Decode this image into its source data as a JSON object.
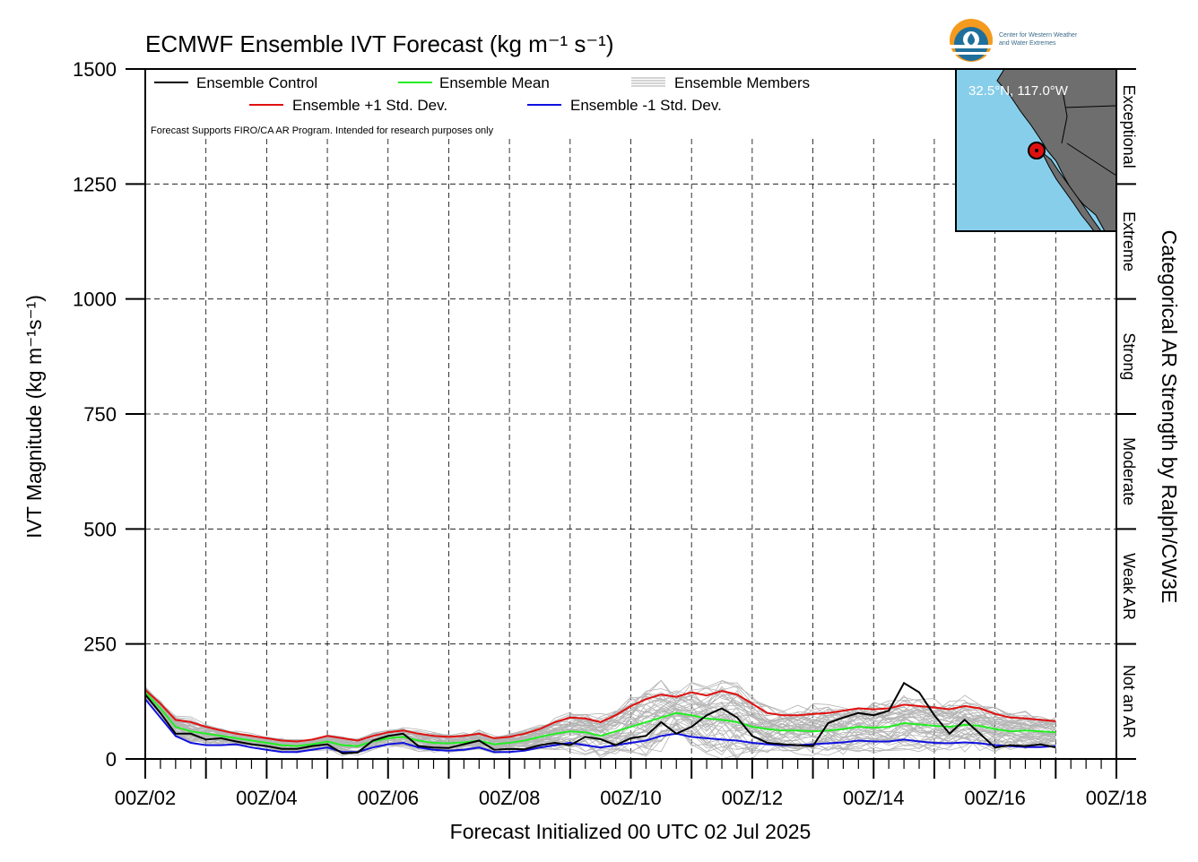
{
  "title": "ECMWF Ensemble IVT Forecast (kg m⁻¹ s⁻¹)",
  "ylabel": "IVT Magnitude (kg m⁻¹s⁻¹)",
  "xlabel": "Forecast Initialized 00 UTC 02 Jul 2025",
  "right_label": "Categorical AR Strength by Ralph/CW3E",
  "note": "Forecast Supports FIRO/CA AR Program. Intended for research purposes only",
  "logo": {
    "line1": "Center for Western Weather",
    "line2": "and Water Extremes"
  },
  "inset": {
    "location": "32.5°N, 117.0°W"
  },
  "legend": [
    {
      "label": "Ensemble Control",
      "color": "#000000"
    },
    {
      "label": "Ensemble Mean",
      "color": "#22ee22"
    },
    {
      "label": "Ensemble Members",
      "color": "#aaaaaa"
    },
    {
      "label": "Ensemble +1 Std. Dev.",
      "color": "#e01010"
    },
    {
      "label": "Ensemble -1 Std. Dev.",
      "color": "#1010e0"
    }
  ],
  "categories": [
    {
      "label": "Not an AR",
      "from": 0,
      "to": 250
    },
    {
      "label": "Weak AR",
      "from": 250,
      "to": 500
    },
    {
      "label": "Moderate",
      "from": 500,
      "to": 750
    },
    {
      "label": "Strong",
      "from": 750,
      "to": 1000
    },
    {
      "label": "Extreme",
      "from": 1000,
      "to": 1250
    },
    {
      "label": "Exceptional",
      "from": 1250,
      "to": 1500
    }
  ],
  "chart_data": {
    "type": "line",
    "title": "ECMWF Ensemble IVT Forecast (kg m⁻¹ s⁻¹)",
    "xlabel": "Forecast Initialized 00 UTC 02 Jul 2025",
    "ylabel": "IVT Magnitude (kg m⁻¹s⁻¹)",
    "ylim": [
      0,
      1500
    ],
    "xlim_hours": [
      0,
      384
    ],
    "yticks": [
      0,
      250,
      500,
      750,
      1000,
      1250,
      1500
    ],
    "xtick_labels": [
      "00Z/02",
      "00Z/04",
      "00Z/06",
      "00Z/08",
      "00Z/10",
      "00Z/12",
      "00Z/14",
      "00Z/16",
      "00Z/18"
    ],
    "xtick_hours": [
      0,
      48,
      96,
      144,
      192,
      240,
      288,
      336,
      384
    ],
    "grid": true,
    "x_hours": [
      0,
      6,
      12,
      18,
      24,
      30,
      36,
      42,
      48,
      54,
      60,
      66,
      72,
      78,
      84,
      90,
      96,
      102,
      108,
      114,
      120,
      126,
      132,
      138,
      144,
      150,
      156,
      162,
      168,
      174,
      180,
      186,
      192,
      198,
      204,
      210,
      216,
      222,
      228,
      234,
      240,
      246,
      252,
      258,
      264,
      270,
      276,
      282,
      288,
      294,
      300,
      306,
      312,
      318,
      324,
      330,
      336,
      342,
      348,
      354,
      360
    ],
    "series": [
      {
        "name": "Ensemble Control",
        "color": "#000000",
        "values": [
          140,
          100,
          55,
          55,
          42,
          45,
          38,
          32,
          28,
          22,
          22,
          28,
          32,
          12,
          14,
          40,
          50,
          55,
          28,
          25,
          24,
          32,
          40,
          20,
          22,
          21,
          30,
          35,
          30,
          48,
          43,
          30,
          45,
          50,
          80,
          55,
          70,
          95,
          110,
          90,
          50,
          35,
          32,
          30,
          28,
          78,
          90,
          100,
          95,
          105,
          165,
          145,
          95,
          55,
          85,
          55,
          25,
          30,
          28,
          32,
          25
        ]
      },
      {
        "name": "Ensemble Mean",
        "color": "#22ee22",
        "values": [
          145,
          110,
          70,
          60,
          55,
          50,
          45,
          40,
          35,
          30,
          28,
          32,
          38,
          30,
          28,
          38,
          45,
          48,
          40,
          35,
          34,
          36,
          40,
          32,
          35,
          40,
          48,
          55,
          60,
          58,
          50,
          60,
          70,
          80,
          90,
          100,
          95,
          88,
          85,
          80,
          70,
          65,
          62,
          62,
          60,
          62,
          65,
          70,
          68,
          70,
          78,
          75,
          72,
          70,
          74,
          72,
          65,
          60,
          62,
          60,
          58
        ]
      },
      {
        "name": "Ensemble +1 Std. Dev.",
        "color": "#e01010",
        "values": [
          150,
          120,
          85,
          80,
          70,
          62,
          55,
          50,
          45,
          40,
          38,
          42,
          50,
          45,
          40,
          50,
          58,
          62,
          55,
          50,
          48,
          50,
          55,
          45,
          48,
          55,
          65,
          80,
          90,
          88,
          80,
          95,
          115,
          130,
          140,
          135,
          145,
          138,
          148,
          140,
          120,
          100,
          95,
          95,
          98,
          100,
          105,
          110,
          108,
          110,
          118,
          115,
          112,
          108,
          115,
          110,
          98,
          90,
          88,
          85,
          82
        ]
      },
      {
        "name": "Ensemble -1 Std. Dev.",
        "color": "#1010e0",
        "values": [
          130,
          90,
          50,
          35,
          30,
          30,
          32,
          25,
          20,
          15,
          15,
          20,
          25,
          15,
          15,
          25,
          32,
          35,
          25,
          20,
          18,
          20,
          25,
          15,
          15,
          18,
          25,
          30,
          35,
          30,
          25,
          30,
          35,
          40,
          50,
          55,
          48,
          45,
          42,
          40,
          35,
          32,
          30,
          30,
          32,
          34,
          36,
          40,
          38,
          38,
          42,
          38,
          35,
          34,
          36,
          34,
          30,
          28,
          26,
          26,
          28
        ]
      }
    ],
    "members_range": {
      "name": "Ensemble Members",
      "min": 0,
      "max": 240
    }
  }
}
